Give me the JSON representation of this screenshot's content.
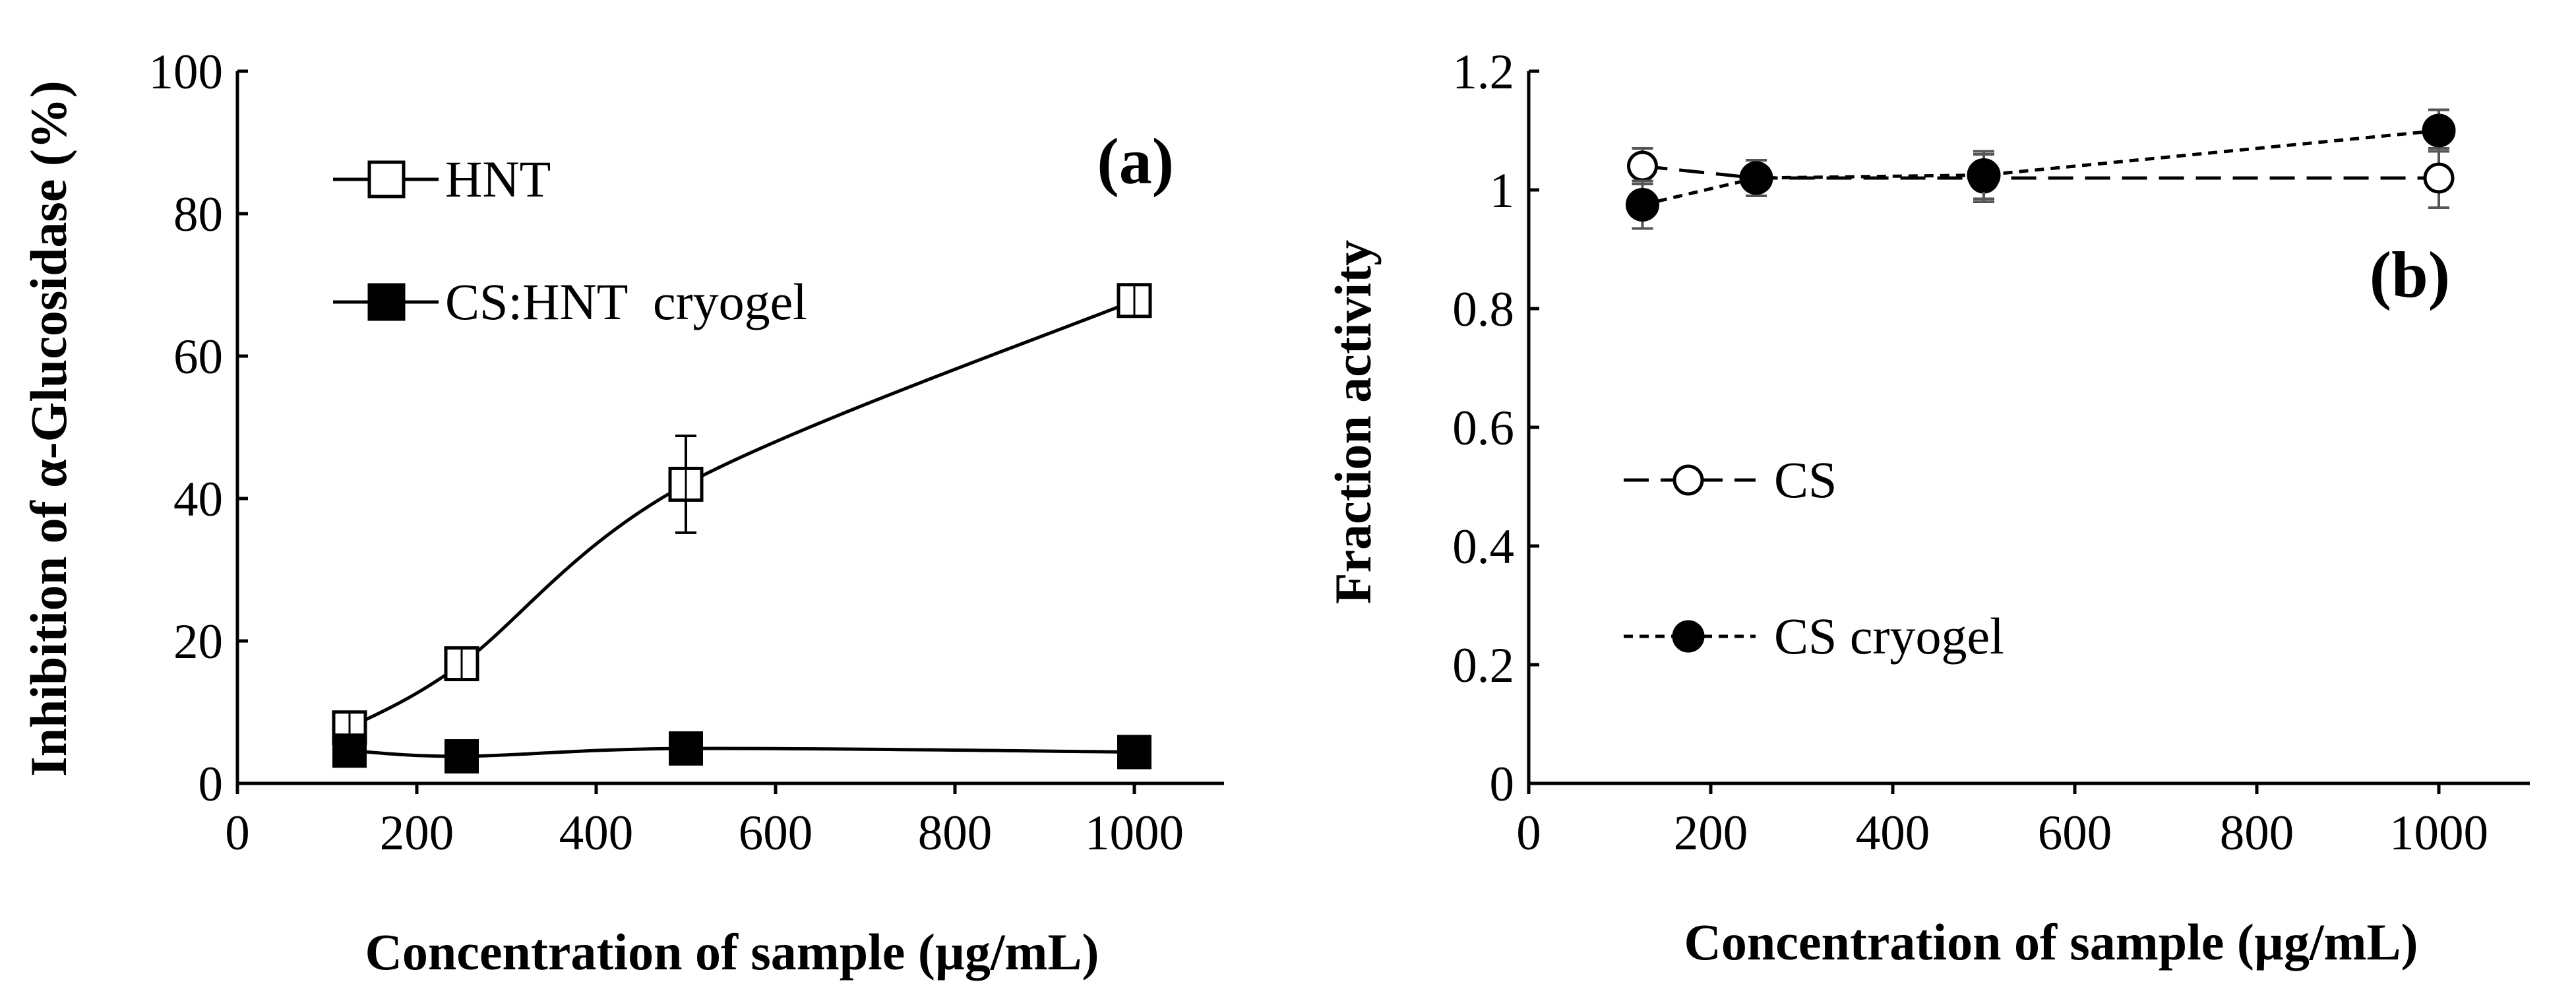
{
  "chart_data": [
    {
      "type": "line",
      "panel_label": "(a)",
      "title": "",
      "xlabel": "Concentration of sample (µg/mL)",
      "ylabel": "Inhibition of α-Glucosidase (%)",
      "xlim": [
        0,
        1100
      ],
      "ylim": [
        0,
        100
      ],
      "xticks": [
        0,
        200,
        400,
        600,
        800,
        1000
      ],
      "yticks": [
        0,
        20,
        40,
        60,
        80,
        100
      ],
      "legend_position": "top-left",
      "grid": false,
      "series": [
        {
          "name": "HNT",
          "x": [
            125,
            250,
            500,
            1000
          ],
          "values": [
            7.8,
            16.8,
            42.0,
            67.8
          ],
          "errors": [
            1.0,
            1.8,
            6.8,
            1.3
          ],
          "marker": "open-square",
          "line": "solid-smooth"
        },
        {
          "name": "CS:HNT  cryogel",
          "x": [
            125,
            250,
            500,
            1000
          ],
          "values": [
            4.6,
            3.8,
            4.9,
            4.4
          ],
          "errors": [
            0.4,
            0.4,
            0.4,
            0.4
          ],
          "marker": "filled-square",
          "line": "solid-smooth"
        }
      ]
    },
    {
      "type": "line",
      "panel_label": "(b)",
      "title": "",
      "xlabel": "Concentration of sample (µg/mL)",
      "ylabel": "Fraction activity",
      "xlim": [
        0,
        1100
      ],
      "ylim": [
        0,
        1.2
      ],
      "xticks": [
        0,
        200,
        400,
        600,
        800,
        1000
      ],
      "yticks": [
        0,
        0.2,
        0.4,
        0.6,
        0.8,
        1,
        1.2
      ],
      "legend_position": "middle-left",
      "grid": false,
      "series": [
        {
          "name": "CS",
          "x": [
            125,
            250,
            500,
            1000
          ],
          "values": [
            1.04,
            1.02,
            1.02,
            1.02
          ],
          "errors": [
            0.03,
            0.03,
            0.04,
            0.05
          ],
          "marker": "open-circle",
          "line": "long-dash"
        },
        {
          "name": "CS cryogel",
          "x": [
            125,
            250,
            500,
            1000
          ],
          "values": [
            0.975,
            1.02,
            1.025,
            1.1
          ],
          "errors": [
            0.04,
            0.03,
            0.04,
            0.035
          ],
          "marker": "filled-circle",
          "line": "short-dash"
        }
      ]
    }
  ]
}
